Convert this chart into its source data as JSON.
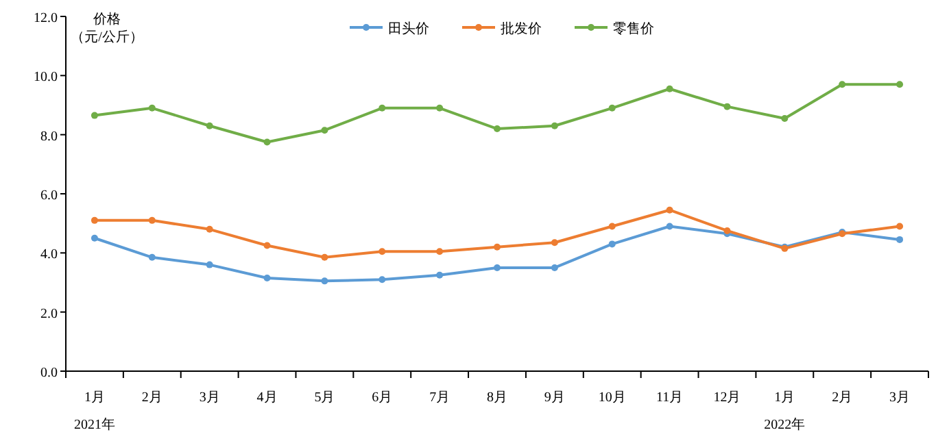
{
  "chart_data": {
    "type": "line",
    "ylabel": "价格（元/公斤）",
    "categories": [
      "1月",
      "2月",
      "3月",
      "4月",
      "5月",
      "6月",
      "7月",
      "8月",
      "9月",
      "10月",
      "11月",
      "12月",
      "1月",
      "2月",
      "3月"
    ],
    "series": [
      {
        "name": "田头价",
        "color": "#5b9bd5",
        "values": [
          4.5,
          3.85,
          3.6,
          3.15,
          3.05,
          3.1,
          3.25,
          3.5,
          3.5,
          4.3,
          4.9,
          4.65,
          4.2,
          4.7,
          4.45
        ]
      },
      {
        "name": "批发价",
        "color": "#ed7d31",
        "values": [
          5.1,
          5.1,
          4.8,
          4.25,
          3.85,
          4.05,
          4.05,
          4.2,
          4.35,
          4.9,
          5.45,
          4.75,
          4.15,
          4.65,
          4.9
        ]
      },
      {
        "name": "零售价",
        "color": "#70ad47",
        "values": [
          8.65,
          8.9,
          8.3,
          7.75,
          8.15,
          8.9,
          8.9,
          8.2,
          8.3,
          8.9,
          9.55,
          8.95,
          8.55,
          9.7,
          9.7
        ]
      }
    ],
    "ylim": [
      0,
      12
    ],
    "yticks": [
      {
        "value": 0,
        "label": "0.0"
      },
      {
        "value": 2,
        "label": "2.0"
      },
      {
        "value": 4,
        "label": "4.0"
      },
      {
        "value": 6,
        "label": "6.0"
      },
      {
        "value": 8,
        "label": "8.0"
      },
      {
        "value": 10,
        "label": "10.0"
      },
      {
        "value": 12,
        "label": "12.0"
      }
    ],
    "annotations": [
      "2021年",
      "2022年"
    ],
    "legend": "top",
    "marker": "circle",
    "line_style": "solid",
    "grid": false
  }
}
